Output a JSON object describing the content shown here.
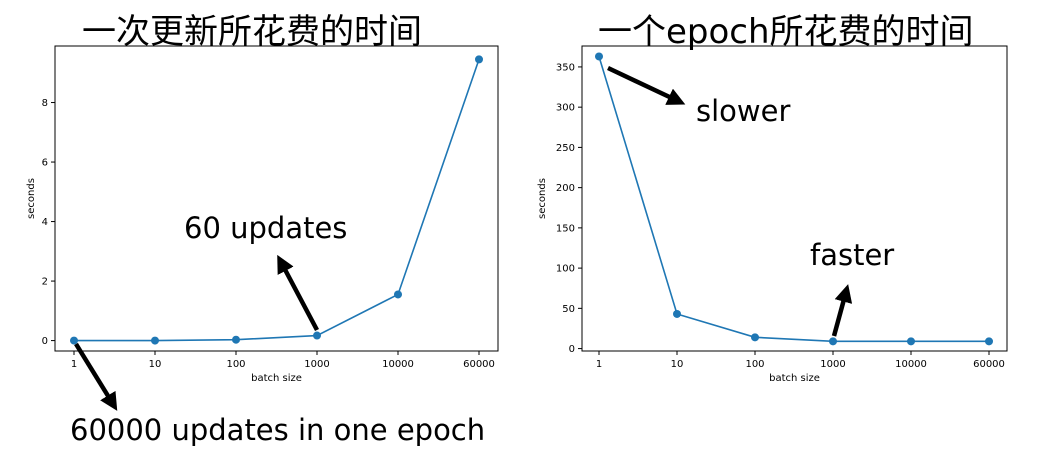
{
  "chart_data": [
    {
      "type": "line",
      "title": "一次更新所花费的时间",
      "xlabel": "batch size",
      "ylabel": "seconds",
      "x_categories": [
        "1",
        "10",
        "100",
        "1000",
        "10000",
        "60000"
      ],
      "values": [
        0.0,
        0.0,
        0.03,
        0.17,
        1.55,
        9.45
      ],
      "ylim": [
        -0.35,
        9.9
      ],
      "yticks": [
        0,
        2,
        4,
        6,
        8
      ],
      "grid": false,
      "color": "#1f77b4",
      "annotations": [
        {
          "text": "60 updates",
          "point_index": 3
        },
        {
          "text": "60000 updates in one epoch",
          "point_index": 0
        }
      ]
    },
    {
      "type": "line",
      "title": "一个epoch所花费的时间",
      "xlabel": "batch size",
      "ylabel": "seconds",
      "x_categories": [
        "1",
        "10",
        "100",
        "1000",
        "10000",
        "60000"
      ],
      "values": [
        363,
        43,
        14,
        9,
        9,
        9
      ],
      "ylim": [
        -3,
        376
      ],
      "yticks": [
        0,
        50,
        100,
        150,
        200,
        250,
        300,
        350
      ],
      "grid": false,
      "color": "#1f77b4",
      "annotations": [
        {
          "text": "slower",
          "point_index": 0
        },
        {
          "text": "faster",
          "point_index": 3
        }
      ]
    }
  ]
}
